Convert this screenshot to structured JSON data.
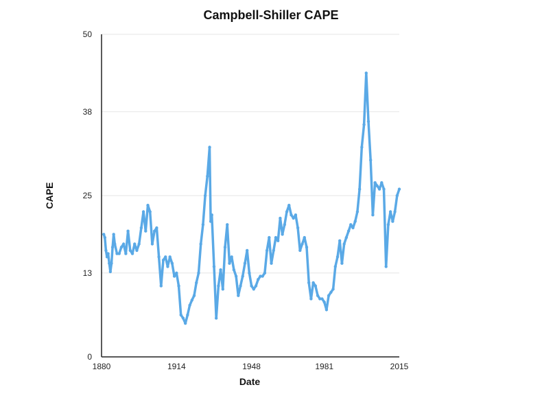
{
  "chart_data": {
    "type": "line",
    "title": "Campbell-Shiller CAPE",
    "xlabel": "Date",
    "ylabel": "CAPE",
    "xlim": [
      1880,
      2015
    ],
    "ylim": [
      0,
      50
    ],
    "x_ticks": [
      "1880",
      "1914",
      "1948",
      "1981",
      "2015"
    ],
    "y_ticks": [
      "0",
      "13",
      "25",
      "38",
      "50"
    ],
    "grid": true,
    "color": "#5aa9e6",
    "series": [
      {
        "name": "CAPE",
        "x": [
          1881,
          1881.5,
          1882,
          1882.5,
          1883,
          1883.5,
          1884,
          1884.5,
          1885,
          1885.5,
          1886,
          1887,
          1888,
          1889,
          1890,
          1891,
          1892,
          1893,
          1894,
          1895,
          1896,
          1897,
          1898,
          1899,
          1900,
          1901,
          1902,
          1903,
          1904,
          1905,
          1906,
          1907,
          1908,
          1909,
          1910,
          1911,
          1912,
          1913,
          1914,
          1915,
          1916,
          1917,
          1918,
          1919,
          1920,
          1921,
          1922,
          1923,
          1924,
          1925,
          1926,
          1927,
          1928,
          1929,
          1929.5,
          1930,
          1931,
          1932,
          1933,
          1934,
          1935,
          1936,
          1937,
          1938,
          1939,
          1940,
          1941,
          1942,
          1943,
          1944,
          1945,
          1946,
          1947,
          1948,
          1949,
          1950,
          1951,
          1952,
          1953,
          1954,
          1955,
          1956,
          1957,
          1958,
          1959,
          1960,
          1961,
          1962,
          1963,
          1964,
          1965,
          1966,
          1967,
          1968,
          1969,
          1970,
          1971,
          1972,
          1973,
          1974,
          1975,
          1976,
          1977,
          1978,
          1979,
          1980,
          1981,
          1982,
          1983,
          1984,
          1985,
          1986,
          1987,
          1988,
          1989,
          1990,
          1991,
          1992,
          1993,
          1994,
          1995,
          1996,
          1997,
          1998,
          1999,
          2000,
          2001,
          2002,
          2003,
          2004,
          2005,
          2006,
          2007,
          2008,
          2009,
          2010,
          2011,
          2012,
          2013,
          2014,
          2015
        ],
        "values": [
          19.0,
          18.5,
          16.5,
          15.5,
          16.0,
          14.5,
          13.2,
          14.5,
          17.0,
          19.0,
          17.5,
          16.0,
          16.0,
          17.0,
          17.5,
          16.0,
          19.5,
          16.5,
          16.0,
          17.5,
          16.5,
          17.5,
          20.0,
          22.5,
          19.5,
          23.5,
          22.5,
          17.5,
          19.5,
          20.0,
          15.5,
          11.0,
          15.0,
          15.5,
          14.0,
          15.5,
          14.5,
          12.5,
          13.0,
          11.0,
          6.5,
          6.0,
          5.2,
          6.5,
          8.0,
          8.8,
          9.5,
          11.5,
          13.0,
          17.5,
          20.5,
          25.0,
          28.0,
          32.5,
          21.0,
          22.0,
          14.0,
          6.0,
          11.0,
          13.5,
          10.5,
          17.0,
          20.5,
          14.5,
          15.5,
          13.5,
          12.5,
          9.5,
          11.0,
          12.5,
          14.5,
          16.5,
          13.0,
          11.0,
          10.5,
          11.0,
          12.0,
          12.5,
          12.5,
          13.0,
          16.5,
          18.5,
          14.5,
          16.5,
          18.5,
          18.0,
          21.5,
          19.0,
          20.5,
          22.5,
          23.5,
          22.0,
          21.5,
          22.0,
          20.0,
          16.5,
          17.5,
          18.5,
          17.0,
          11.5,
          9.0,
          11.5,
          11.0,
          9.5,
          9.0,
          9.0,
          8.5,
          7.3,
          9.5,
          10.0,
          10.5,
          14.0,
          15.5,
          18.0,
          14.5,
          17.5,
          18.5,
          19.5,
          20.5,
          20.0,
          21.0,
          22.5,
          26.0,
          32.5,
          36.0,
          44.0,
          36.5,
          30.5,
          22.0,
          27.0,
          26.5,
          26.0,
          27.0,
          26.0,
          14.0,
          20.5,
          22.5,
          21.0,
          22.5,
          25.0,
          26.0
        ]
      }
    ]
  }
}
